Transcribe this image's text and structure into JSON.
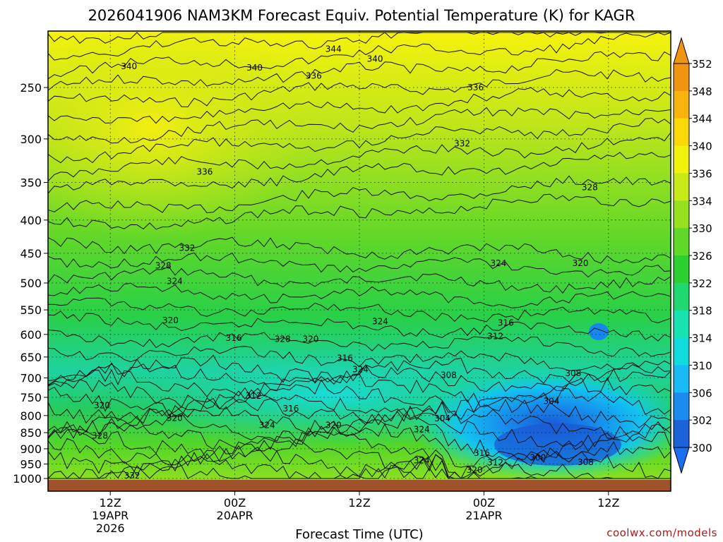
{
  "chart_data": {
    "type": "heatmap",
    "title": "2026041906 NAM3KM Forecast Equiv. Potential Temperature (K) for KAGR",
    "xlabel": "Forecast Time (UTC)",
    "ylabel": "",
    "y_scale": "log",
    "y_reversed": true,
    "ylim": [
      1040,
      200
    ],
    "y_ticks": [
      250,
      300,
      350,
      400,
      450,
      500,
      550,
      600,
      650,
      700,
      750,
      800,
      850,
      900,
      950,
      1000
    ],
    "x_range_hours": [
      6,
      66
    ],
    "x_ticks": [
      {
        "hour": 12,
        "label": "12Z",
        "sub1": "19APR",
        "sub2": "2026"
      },
      {
        "hour": 24,
        "label": "00Z",
        "sub1": "20APR",
        "sub2": ""
      },
      {
        "hour": 36,
        "label": "12Z",
        "sub1": "",
        "sub2": ""
      },
      {
        "hour": 48,
        "label": "00Z",
        "sub1": "21APR",
        "sub2": ""
      },
      {
        "hour": 60,
        "label": "12Z",
        "sub1": "",
        "sub2": ""
      }
    ],
    "grid": true,
    "colorbar": {
      "levels": [
        300,
        302,
        306,
        310,
        314,
        318,
        322,
        326,
        330,
        334,
        336,
        340,
        344,
        348,
        352
      ],
      "colors": [
        "#1c62d8",
        "#1a8cef",
        "#18bbf4",
        "#10dce0",
        "#18e2b2",
        "#20d870",
        "#2cd030",
        "#60d828",
        "#96e020",
        "#c8ea18",
        "#f2f20c",
        "#fcd80a",
        "#f8b40c",
        "#f09412"
      ],
      "labels": [
        "352",
        "348",
        "344",
        "340",
        "336",
        "334",
        "330",
        "326",
        "322",
        "318",
        "314",
        "310",
        "306",
        "302",
        "300"
      ]
    },
    "contour_labels": [
      {
        "text": "344",
        "hour": 33.5,
        "p": 218
      },
      {
        "text": "340",
        "hour": 13.8,
        "p": 232
      },
      {
        "text": "340",
        "hour": 25.9,
        "p": 233
      },
      {
        "text": "340",
        "hour": 37.5,
        "p": 226
      },
      {
        "text": "336",
        "hour": 31.6,
        "p": 240
      },
      {
        "text": "336",
        "hour": 47.2,
        "p": 250
      },
      {
        "text": "332",
        "hour": 45.9,
        "p": 305
      },
      {
        "text": "336",
        "hour": 21.1,
        "p": 337
      },
      {
        "text": "328",
        "hour": 58.2,
        "p": 356
      },
      {
        "text": "332",
        "hour": 19.4,
        "p": 442
      },
      {
        "text": "328",
        "hour": 17.1,
        "p": 470
      },
      {
        "text": "324",
        "hour": 49.4,
        "p": 466
      },
      {
        "text": "320",
        "hour": 57.3,
        "p": 466
      },
      {
        "text": "324",
        "hour": 18.2,
        "p": 497
      },
      {
        "text": "320",
        "hour": 17.8,
        "p": 571
      },
      {
        "text": "324",
        "hour": 38.0,
        "p": 573
      },
      {
        "text": "316",
        "hour": 50.1,
        "p": 576
      },
      {
        "text": "312",
        "hour": 49.1,
        "p": 604
      },
      {
        "text": "316",
        "hour": 23.9,
        "p": 608
      },
      {
        "text": "328",
        "hour": 28.6,
        "p": 610
      },
      {
        "text": "320",
        "hour": 31.3,
        "p": 610
      },
      {
        "text": "316",
        "hour": 34.6,
        "p": 653
      },
      {
        "text": "324",
        "hour": 36.1,
        "p": 679
      },
      {
        "text": "308",
        "hour": 44.6,
        "p": 693
      },
      {
        "text": "308",
        "hour": 56.6,
        "p": 689
      },
      {
        "text": "312",
        "hour": 25.8,
        "p": 746
      },
      {
        "text": "320",
        "hour": 11.2,
        "p": 772
      },
      {
        "text": "304",
        "hour": 54.5,
        "p": 760
      },
      {
        "text": "316",
        "hour": 29.4,
        "p": 781
      },
      {
        "text": "320",
        "hour": 18.2,
        "p": 807
      },
      {
        "text": "304",
        "hour": 44.0,
        "p": 808
      },
      {
        "text": "324",
        "hour": 27.1,
        "p": 828
      },
      {
        "text": "320",
        "hour": 33.5,
        "p": 828
      },
      {
        "text": "328",
        "hour": 11.0,
        "p": 860
      },
      {
        "text": "324",
        "hour": 42.0,
        "p": 840
      },
      {
        "text": "316",
        "hour": 47.8,
        "p": 914
      },
      {
        "text": "300",
        "hour": 53.2,
        "p": 929
      },
      {
        "text": "312",
        "hour": 49.1,
        "p": 945
      },
      {
        "text": "308",
        "hour": 57.8,
        "p": 944
      },
      {
        "text": "324",
        "hour": 42.0,
        "p": 938
      },
      {
        "text": "320",
        "hour": 47.1,
        "p": 970
      },
      {
        "text": "332",
        "hour": 14.1,
        "p": 990
      }
    ]
  },
  "credit": "coolwx.com/models"
}
